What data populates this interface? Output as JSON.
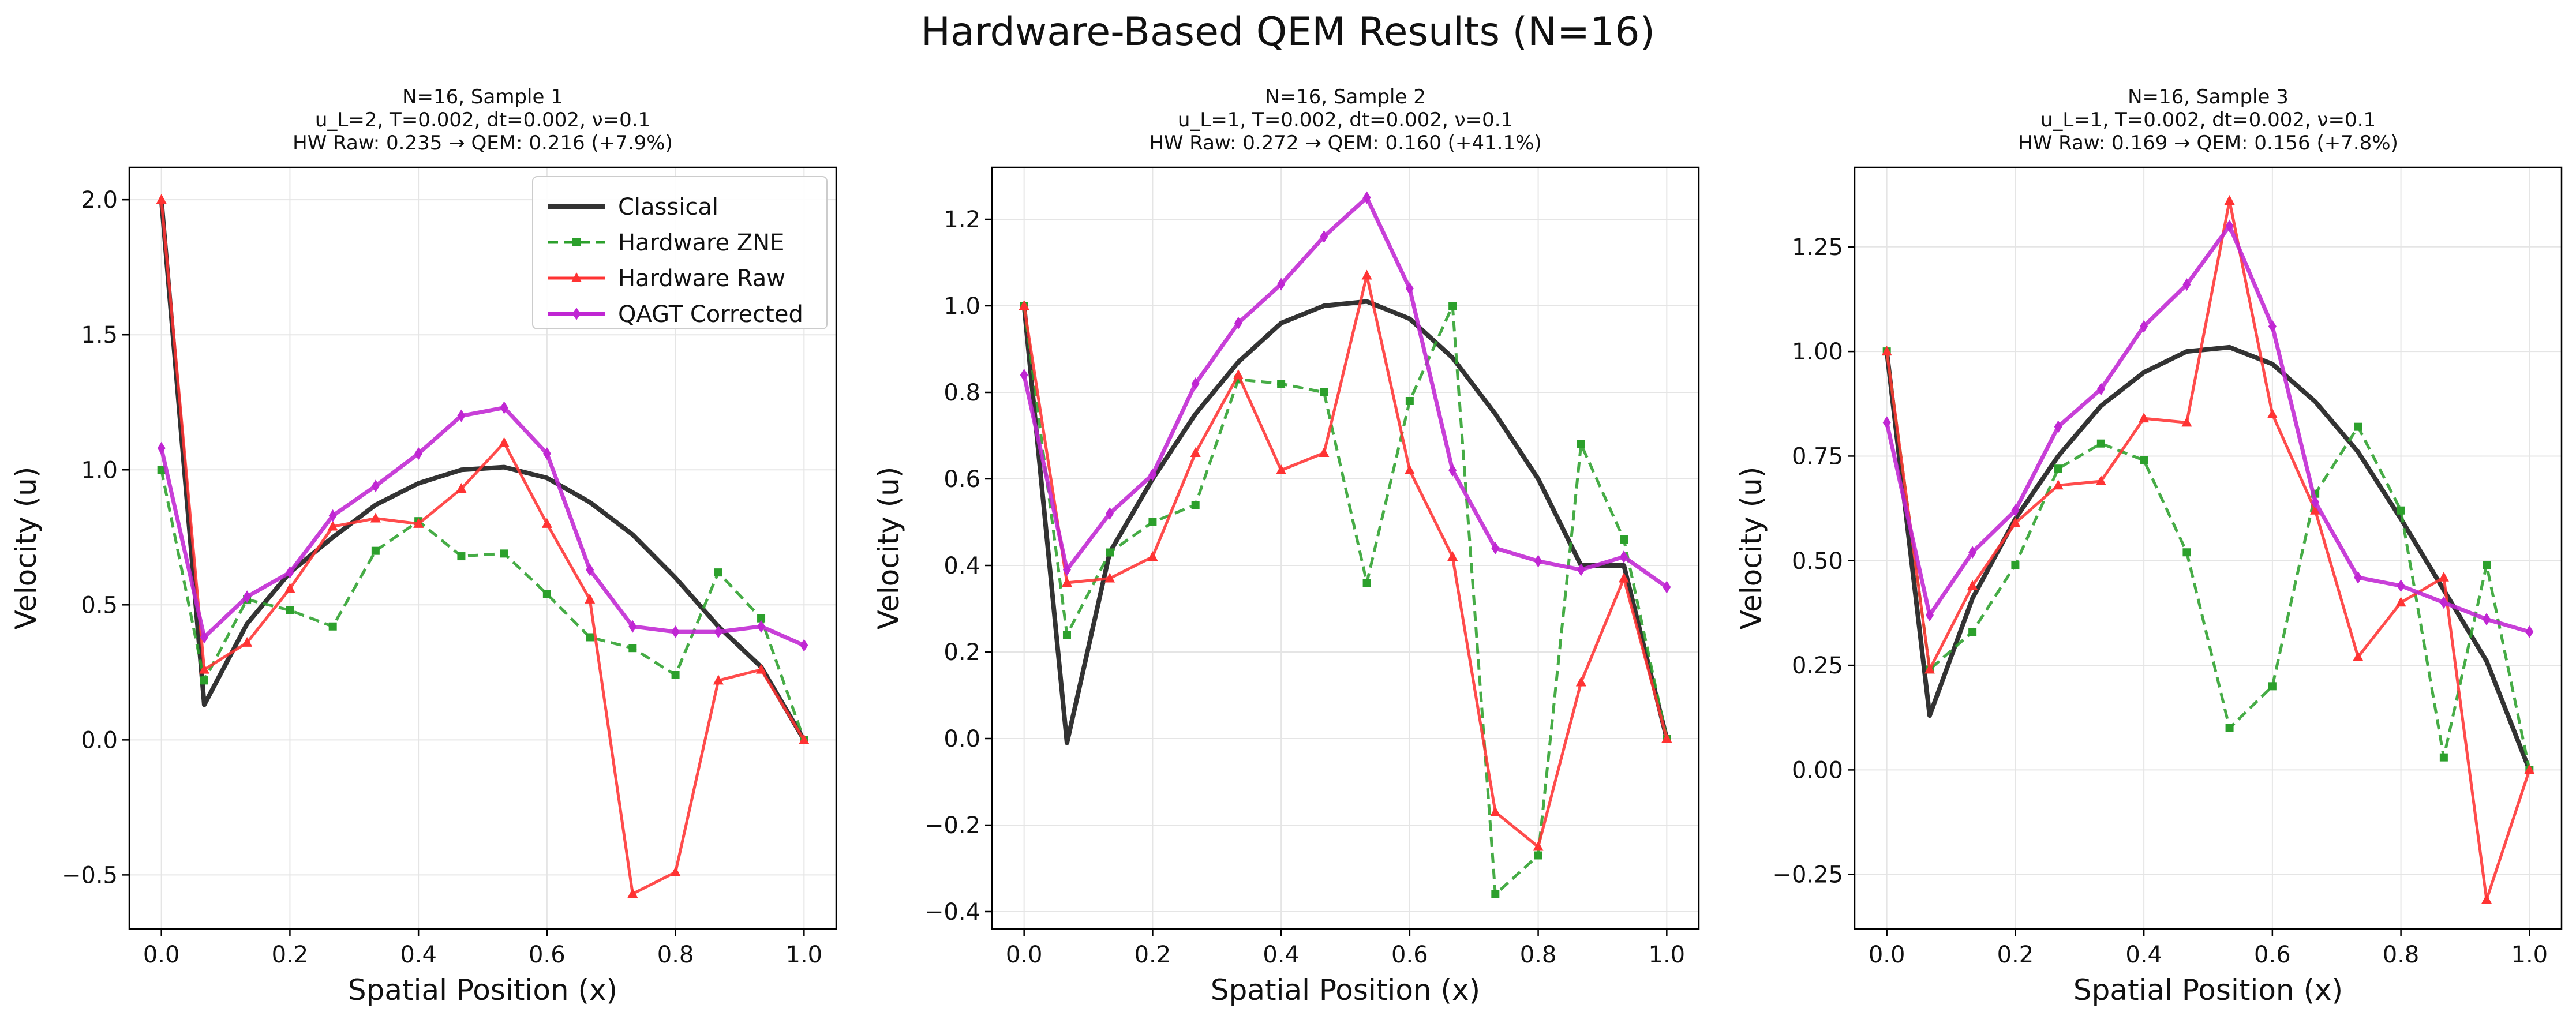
{
  "figure_title": "Hardware-Based QEM Results (N=16)",
  "legend": {
    "location": "upper right",
    "entries": [
      "Classical",
      "Hardware ZNE",
      "Hardware Raw",
      "QAGT Corrected"
    ]
  },
  "series_styles": [
    {
      "name": "Classical",
      "color": "#333333",
      "dash": "solid",
      "marker": "none"
    },
    {
      "name": "Hardware ZNE",
      "color": "#2ca02c",
      "dash": "dashed",
      "marker": "square"
    },
    {
      "name": "Hardware Raw",
      "color": "#ff3333",
      "dash": "solid",
      "marker": "triangle"
    },
    {
      "name": "QAGT Corrected",
      "color": "#c026d3",
      "dash": "solid",
      "marker": "diamond"
    }
  ],
  "chart_data": [
    {
      "type": "line",
      "title_lines": [
        "N=16, Sample 1",
        "u_L=2, T=0.002, dt=0.002, ν=0.1",
        "HW Raw: 0.235 → QEM: 0.216 (+7.9%)"
      ],
      "xlabel": "Spatial Position (x)",
      "ylabel": "Velocity (u)",
      "xlim": [
        -0.05,
        1.05
      ],
      "ylim": [
        -0.7,
        2.12
      ],
      "xticks": [
        0.0,
        0.2,
        0.4,
        0.6,
        0.8,
        1.0
      ],
      "xtick_labels": [
        "0.0",
        "0.2",
        "0.4",
        "0.6",
        "0.8",
        "1.0"
      ],
      "yticks": [
        -0.5,
        0.0,
        0.5,
        1.0,
        1.5,
        2.0
      ],
      "ytick_labels": [
        "−0.5",
        "0.0",
        "0.5",
        "1.0",
        "1.5",
        "2.0"
      ],
      "grid": true,
      "show_legend": true,
      "x": [
        0.0,
        0.0667,
        0.1333,
        0.2,
        0.2667,
        0.3333,
        0.4,
        0.4667,
        0.5333,
        0.6,
        0.6667,
        0.7333,
        0.8,
        0.8667,
        0.9333,
        1.0
      ],
      "series": [
        {
          "name": "Classical",
          "values": [
            2.0,
            0.13,
            0.43,
            0.62,
            0.75,
            0.87,
            0.95,
            1.0,
            1.01,
            0.97,
            0.88,
            0.76,
            0.6,
            0.42,
            0.27,
            0.0
          ]
        },
        {
          "name": "Hardware ZNE",
          "values": [
            1.0,
            0.22,
            0.52,
            0.48,
            0.42,
            0.7,
            0.81,
            0.68,
            0.69,
            0.54,
            0.38,
            0.34,
            0.24,
            0.62,
            0.45,
            0.0
          ]
        },
        {
          "name": "Hardware Raw",
          "values": [
            2.0,
            0.26,
            0.36,
            0.56,
            0.79,
            0.82,
            0.8,
            0.93,
            1.1,
            0.8,
            0.52,
            -0.57,
            -0.49,
            0.22,
            0.26,
            0.0
          ]
        },
        {
          "name": "QAGT Corrected",
          "values": [
            1.08,
            0.38,
            0.53,
            0.62,
            0.83,
            0.94,
            1.06,
            1.2,
            1.23,
            1.06,
            0.63,
            0.42,
            0.4,
            0.4,
            0.42,
            0.35
          ]
        }
      ]
    },
    {
      "type": "line",
      "title_lines": [
        "N=16, Sample 2",
        "u_L=1, T=0.002, dt=0.002, ν=0.1",
        "HW Raw: 0.272 → QEM: 0.160 (+41.1%)"
      ],
      "xlabel": "Spatial Position (x)",
      "ylabel": "Velocity (u)",
      "xlim": [
        -0.05,
        1.05
      ],
      "ylim": [
        -0.44,
        1.32
      ],
      "xticks": [
        0.0,
        0.2,
        0.4,
        0.6,
        0.8,
        1.0
      ],
      "xtick_labels": [
        "0.0",
        "0.2",
        "0.4",
        "0.6",
        "0.8",
        "1.0"
      ],
      "yticks": [
        -0.4,
        -0.2,
        0.0,
        0.2,
        0.4,
        0.6,
        0.8,
        1.0,
        1.2
      ],
      "ytick_labels": [
        "−0.4",
        "−0.2",
        "0.0",
        "0.2",
        "0.4",
        "0.6",
        "0.8",
        "1.0",
        "1.2"
      ],
      "grid": true,
      "show_legend": false,
      "x": [
        0.0,
        0.0667,
        0.1333,
        0.2,
        0.2667,
        0.3333,
        0.4,
        0.4667,
        0.5333,
        0.6,
        0.6667,
        0.7333,
        0.8,
        0.8667,
        0.9333,
        1.0
      ],
      "series": [
        {
          "name": "Classical",
          "values": [
            1.0,
            -0.01,
            0.43,
            0.6,
            0.75,
            0.87,
            0.96,
            1.0,
            1.01,
            0.97,
            0.88,
            0.75,
            0.6,
            0.4,
            0.4,
            0.0
          ]
        },
        {
          "name": "Hardware ZNE",
          "values": [
            1.0,
            0.24,
            0.43,
            0.5,
            0.54,
            0.83,
            0.82,
            0.8,
            0.36,
            0.78,
            1.0,
            -0.36,
            -0.27,
            0.68,
            0.46,
            0.0
          ]
        },
        {
          "name": "Hardware Raw",
          "values": [
            1.0,
            0.36,
            0.37,
            0.42,
            0.66,
            0.84,
            0.62,
            0.66,
            1.07,
            0.62,
            0.42,
            -0.17,
            -0.25,
            0.13,
            0.37,
            0.0
          ]
        },
        {
          "name": "QAGT Corrected",
          "values": [
            0.84,
            0.39,
            0.52,
            0.61,
            0.82,
            0.96,
            1.05,
            1.16,
            1.25,
            1.04,
            0.62,
            0.44,
            0.41,
            0.39,
            0.42,
            0.35
          ]
        }
      ]
    },
    {
      "type": "line",
      "title_lines": [
        "N=16, Sample 3",
        "u_L=1, T=0.002, dt=0.002, ν=0.1",
        "HW Raw: 0.169 → QEM: 0.156 (+7.8%)"
      ],
      "xlabel": "Spatial Position (x)",
      "ylabel": "Velocity (u)",
      "xlim": [
        -0.05,
        1.05
      ],
      "ylim": [
        -0.38,
        1.44
      ],
      "xticks": [
        0.0,
        0.2,
        0.4,
        0.6,
        0.8,
        1.0
      ],
      "xtick_labels": [
        "0.0",
        "0.2",
        "0.4",
        "0.6",
        "0.8",
        "1.0"
      ],
      "yticks": [
        -0.25,
        0.0,
        0.25,
        0.5,
        0.75,
        1.0,
        1.25
      ],
      "ytick_labels": [
        "−0.25",
        "0.00",
        "0.25",
        "0.50",
        "0.75",
        "1.00",
        "1.25"
      ],
      "grid": true,
      "show_legend": false,
      "x": [
        0.0,
        0.0667,
        0.1333,
        0.2,
        0.2667,
        0.3333,
        0.4,
        0.4667,
        0.5333,
        0.6,
        0.6667,
        0.7333,
        0.8,
        0.8667,
        0.9333,
        1.0
      ],
      "series": [
        {
          "name": "Classical",
          "values": [
            1.0,
            0.13,
            0.41,
            0.6,
            0.75,
            0.87,
            0.95,
            1.0,
            1.01,
            0.97,
            0.88,
            0.76,
            0.6,
            0.43,
            0.26,
            0.0
          ]
        },
        {
          "name": "Hardware ZNE",
          "values": [
            1.0,
            0.24,
            0.33,
            0.49,
            0.72,
            0.78,
            0.74,
            0.52,
            0.1,
            0.2,
            0.66,
            0.82,
            0.62,
            0.03,
            0.49,
            0.0
          ]
        },
        {
          "name": "Hardware Raw",
          "values": [
            1.0,
            0.24,
            0.44,
            0.59,
            0.68,
            0.69,
            0.84,
            0.83,
            1.36,
            0.85,
            0.62,
            0.27,
            0.4,
            0.46,
            -0.31,
            0.0
          ]
        },
        {
          "name": "QAGT Corrected",
          "values": [
            0.83,
            0.37,
            0.52,
            0.62,
            0.82,
            0.91,
            1.06,
            1.16,
            1.3,
            1.06,
            0.64,
            0.46,
            0.44,
            0.4,
            0.36,
            0.33
          ]
        }
      ]
    }
  ]
}
